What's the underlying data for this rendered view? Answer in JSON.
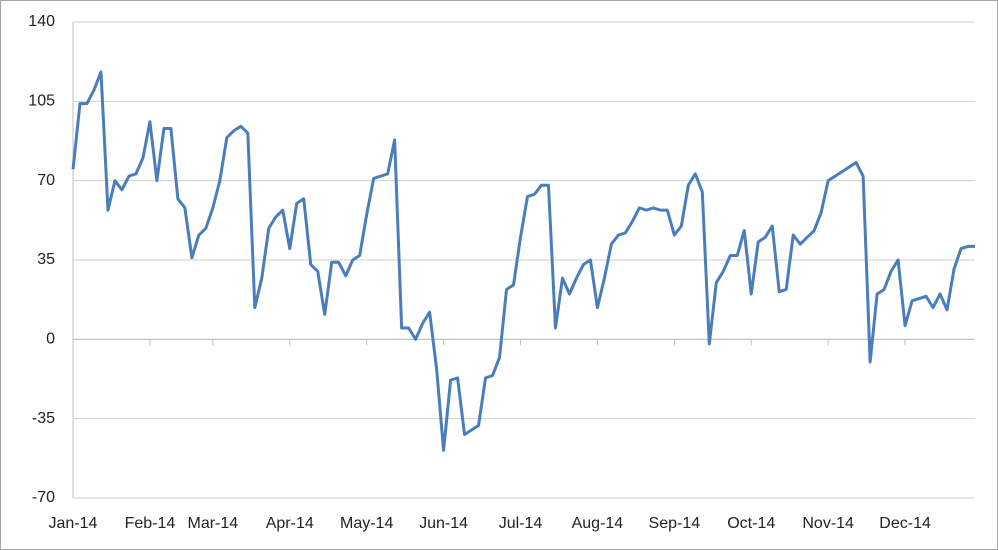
{
  "chart_data": {
    "type": "line",
    "categories": [
      "Jan-14",
      null,
      null,
      null,
      null,
      null,
      null,
      null,
      null,
      null,
      null,
      "Feb-14",
      null,
      null,
      null,
      null,
      null,
      null,
      null,
      null,
      "Mar-14",
      null,
      null,
      null,
      null,
      null,
      null,
      null,
      null,
      null,
      null,
      "Apr-14",
      null,
      null,
      null,
      null,
      null,
      null,
      null,
      null,
      null,
      null,
      "May-14",
      null,
      null,
      null,
      null,
      null,
      null,
      null,
      null,
      null,
      null,
      "Jun-14",
      null,
      null,
      null,
      null,
      null,
      null,
      null,
      null,
      null,
      null,
      "Jul-14",
      null,
      null,
      null,
      null,
      null,
      null,
      null,
      null,
      null,
      null,
      "Aug-14",
      null,
      null,
      null,
      null,
      null,
      null,
      null,
      null,
      null,
      null,
      "Sep-14",
      null,
      null,
      null,
      null,
      null,
      null,
      null,
      null,
      null,
      null,
      "Oct-14",
      null,
      null,
      null,
      null,
      null,
      null,
      null,
      null,
      null,
      null,
      "Nov-14",
      null,
      null,
      null,
      null,
      null,
      null,
      null,
      null,
      null,
      null,
      "Dec-14",
      null,
      null,
      null,
      null,
      null,
      null,
      null,
      null,
      null,
      null
    ],
    "values": [
      75,
      104,
      104,
      110,
      118,
      57,
      70,
      66,
      72,
      73,
      80,
      96,
      70,
      93,
      93,
      62,
      58,
      36,
      46,
      49,
      58,
      70,
      89,
      92,
      94,
      91,
      14,
      27,
      49,
      54,
      57,
      40,
      60,
      62,
      33,
      30,
      11,
      34,
      34,
      28,
      35,
      37,
      55,
      71,
      72,
      73,
      88,
      5,
      5,
      0,
      7,
      12,
      -13,
      -49,
      -18,
      -17,
      -42,
      -40,
      -38,
      -17,
      -16,
      -8,
      22,
      24,
      45,
      63,
      64,
      68,
      68,
      5,
      27,
      20,
      27,
      33,
      35,
      14,
      27,
      42,
      46,
      47,
      52,
      58,
      57,
      58,
      57,
      57,
      46,
      50,
      68,
      73,
      65,
      -2,
      25,
      30,
      37,
      37,
      48,
      20,
      43,
      45,
      50,
      21,
      22,
      46,
      42,
      45,
      48,
      56,
      70,
      72,
      74,
      76,
      78,
      72,
      -10,
      20,
      22,
      30,
      35,
      6,
      17,
      18,
      19,
      14,
      20,
      13,
      31,
      40,
      41,
      41
    ],
    "color": "#4a7ebb",
    "ylim": [
      -70,
      140
    ],
    "yticks": [
      -70,
      -35,
      0,
      35,
      70,
      105,
      140
    ],
    "grid": true
  }
}
